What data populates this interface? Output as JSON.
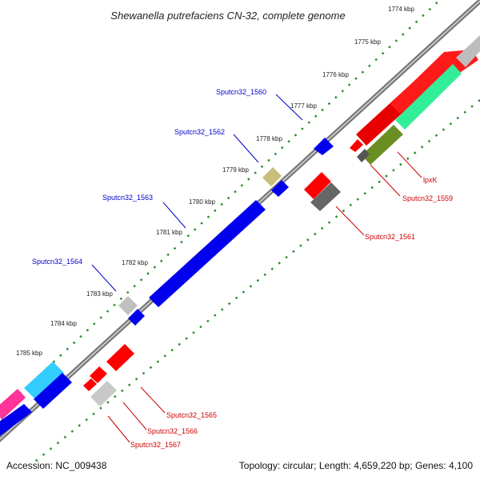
{
  "title": "Shewanella putrefaciens CN-32, complete genome",
  "footer": {
    "accession": "Accession: NC_009438",
    "summary": "Topology: circular; Length: 4,659,220 bp; Genes: 4,100"
  },
  "ticks": [
    "1774 kbp",
    "1775 kbp",
    "1776 kbp",
    "1777 kbp",
    "1778 kbp",
    "1779 kbp",
    "1780 kbp",
    "1781 kbp",
    "1782 kbp",
    "1783 kbp",
    "1784 kbp",
    "1785 kbp"
  ],
  "gene_labels_upper": [
    "Sputcn32_1560",
    "Sputcn32_1562",
    "Sputcn32_1563",
    "Sputcn32_1564"
  ],
  "gene_labels_lower": [
    "lpxK",
    "Sputcn32_1559",
    "Sputcn32_1561",
    "Sputcn32_1565",
    "Sputcn32_1566",
    "Sputcn32_1567"
  ],
  "colors": {
    "backbone": "#808080",
    "tick_marks": "#2e8b2e",
    "label_blue": "#0000cc",
    "label_red": "#cc0000",
    "gene_blue": "#0000ff",
    "gene_red": "#ff0000",
    "gene_gray": "#c0c0c0",
    "gene_darkgray": "#666666",
    "gene_olive": "#6b8e23",
    "gene_khaki": "#c8bd7a",
    "gene_aqua": "#33ddaa",
    "gene_cyan": "#33ccff",
    "gene_pink": "#ff3399"
  }
}
